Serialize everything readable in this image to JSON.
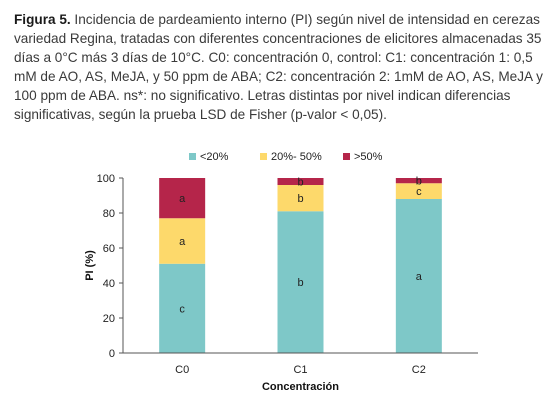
{
  "caption": {
    "figure_label": "Figura 5.",
    "text": " Incidencia de pardeamiento interno (PI) según nivel de intensidad en cerezas variedad Regina, tratadas con diferentes concentraciones de elicitores almacenadas 35 días a 0°C más 3 días de 10°C. C0: concentración 0, control: C1: concentración 1: 0,5 mM de AO, AS, MeJA, y 50 ppm de ABA; C2: concentración 2: 1mM de AO, AS, MeJA y 100 ppm de ABA. ns*: no significativo. Letras distintas por nivel indican diferencias significativas, según la prueba LSD de Fisher (p-valor < 0,05)."
  },
  "chart_data": {
    "type": "bar",
    "stacked": true,
    "categories": [
      "C0",
      "C1",
      "C2"
    ],
    "series": [
      {
        "name": "<20%",
        "color": "#7ec8c8",
        "values": [
          51,
          81,
          88
        ],
        "labels": [
          "c",
          "b",
          "a"
        ]
      },
      {
        "name": "20%- 50%",
        "color": "#fdd96b",
        "values": [
          26,
          15,
          9
        ],
        "labels": [
          "a",
          "b",
          "c"
        ]
      },
      {
        "name": ">50%",
        "color": "#b5254a",
        "values": [
          23,
          4,
          3
        ],
        "labels": [
          "a",
          "b",
          "b"
        ]
      }
    ],
    "xlabel": "Concentración",
    "ylabel": "PI (%)",
    "ylim": [
      0,
      100
    ],
    "yticks": [
      0,
      20,
      40,
      60,
      80,
      100
    ],
    "legend_position": "top",
    "grid": false
  }
}
